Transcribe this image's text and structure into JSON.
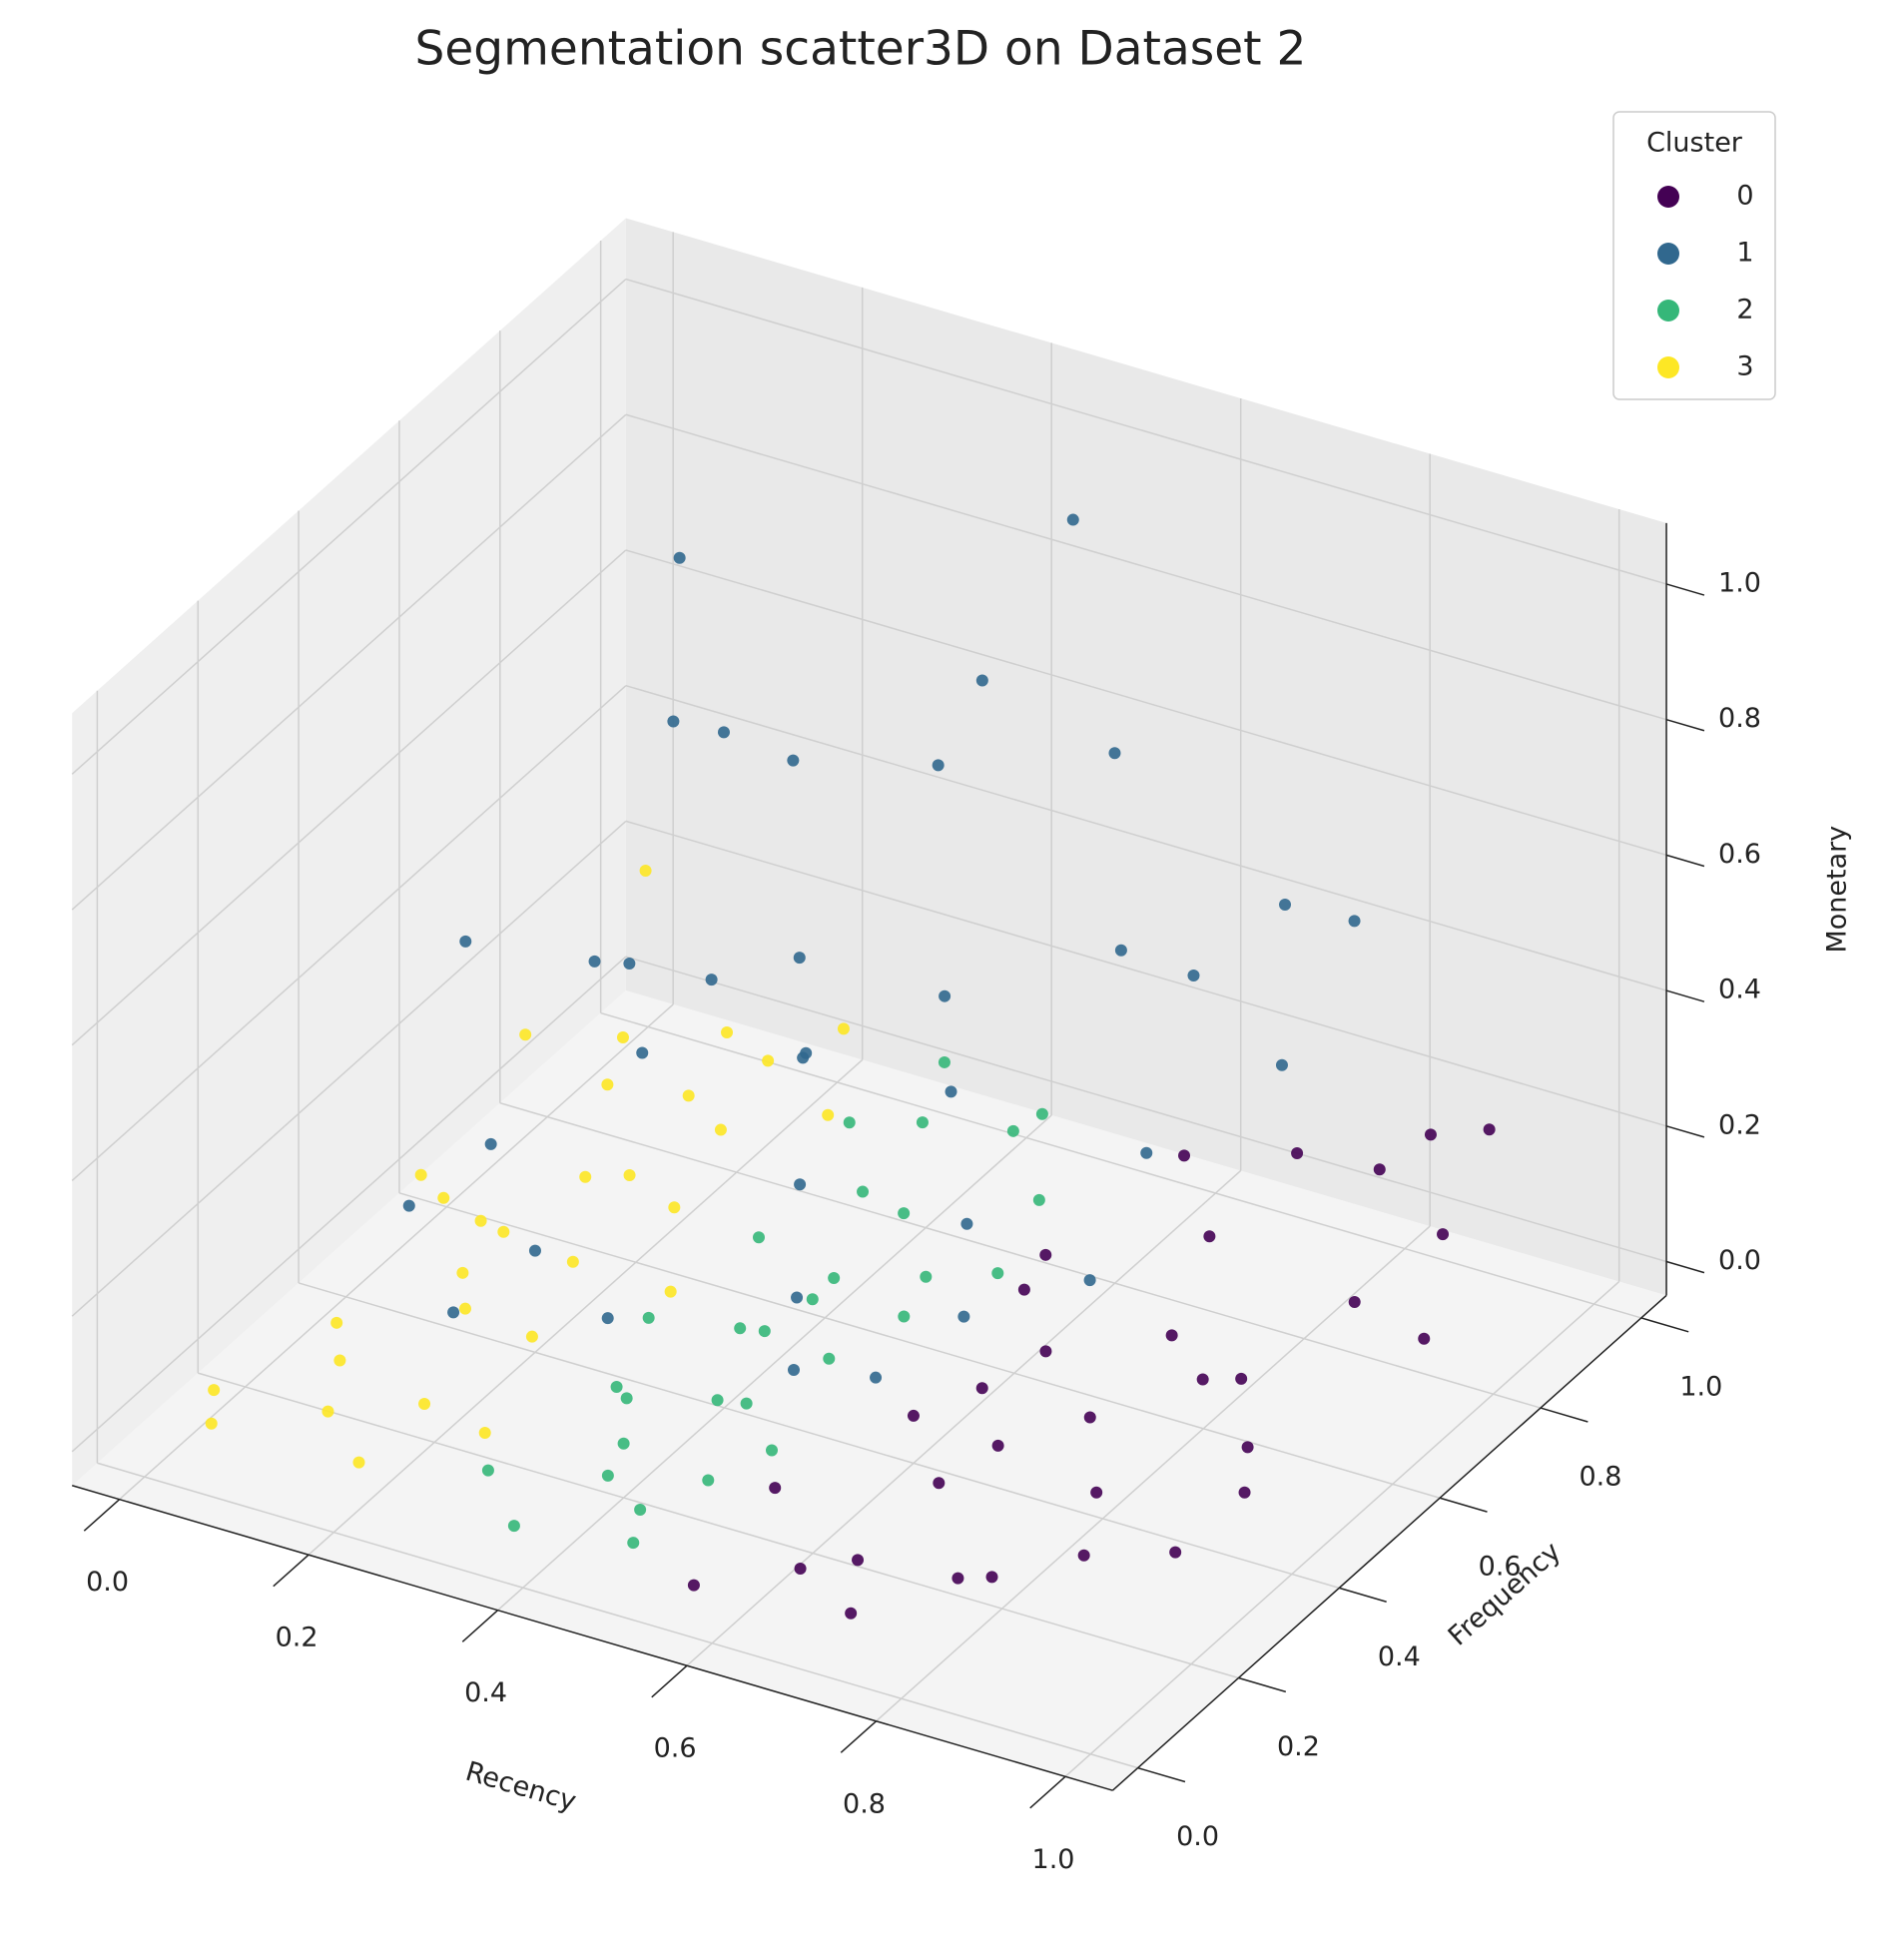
{
  "chart_data": {
    "type": "scatter3d",
    "title": "Segmentation scatter3D on Dataset 2",
    "x_label": "Recency",
    "y_label": "Frequency",
    "z_label": "Monetary",
    "legend_title": "Cluster",
    "legend": "upper right",
    "grid": true,
    "xlim": [
      -0.05,
      1.05
    ],
    "ylim": [
      -0.05,
      1.05
    ],
    "zlim": [
      -0.05,
      1.09
    ],
    "xticks": [
      {
        "value": 0,
        "label": "0.0"
      },
      0.2,
      0.4,
      0.6,
      0.8,
      {
        "value": 1,
        "label": "1.0"
      }
    ],
    "yticks": [
      {
        "value": 0,
        "label": "0.0"
      },
      0.2,
      0.4,
      0.6,
      0.8,
      {
        "value": 1,
        "label": "1.0"
      }
    ],
    "zticks": [
      {
        "value": 0,
        "label": "0.0"
      },
      0.2,
      0.4,
      0.6,
      0.8,
      {
        "value": 1,
        "label": "1.0"
      }
    ],
    "series": [
      {
        "name": "0",
        "color": "#440154",
        "x": [
          0.56,
          0.58,
          0.6,
          0.62,
          0.64,
          0.66,
          0.68,
          0.7,
          0.72,
          0.74,
          0.76,
          0.78,
          0.8,
          0.82,
          0.84,
          0.86,
          0.88,
          0.9,
          0.92,
          0.95,
          0.98,
          0.57,
          0.63,
          0.69,
          0.75,
          0.81,
          0.87,
          0.93,
          0.6,
          0.7,
          0.8,
          0.9
        ],
        "y": [
          0.2,
          0.7,
          0.4,
          0.9,
          0.1,
          0.55,
          0.3,
          0.8,
          0.05,
          0.65,
          0.45,
          0.15,
          0.95,
          0.35,
          0.6,
          0.25,
          0.75,
          0.5,
          0.85,
          0.4,
          0.7,
          0.02,
          0.48,
          0.12,
          0.88,
          0.58,
          0.92,
          0.3,
          0.62,
          0.38,
          0.18,
          0.98
        ],
        "z": [
          0.03,
          0.05,
          0.02,
          0.08,
          0.01,
          0.04,
          0.02,
          0.06,
          0.01,
          0.03,
          0.05,
          0.02,
          0.1,
          0.03,
          0.04,
          0.02,
          0.07,
          0.03,
          0.12,
          0.05,
          0.09,
          0.01,
          0.02,
          0.03,
          0.15,
          0.04,
          0.2,
          0.02,
          0.06,
          0.03,
          0.01,
          0.18
        ]
      },
      {
        "name": "1",
        "color": "#31688e",
        "x": [
          0.02,
          0.05,
          0.08,
          0.1,
          0.14,
          0.18,
          0.2,
          0.24,
          0.28,
          0.3,
          0.33,
          0.36,
          0.4,
          0.42,
          0.45,
          0.48,
          0.5,
          0.52,
          0.55,
          0.58,
          0.6,
          0.63,
          0.66,
          0.7,
          0.75,
          0.8,
          0.12,
          0.22,
          0.35,
          0.46,
          0.56,
          0.68,
          0.38,
          0.26,
          0.16,
          0.06
        ],
        "y": [
          0.6,
          0.8,
          0.9,
          0.5,
          0.7,
          0.95,
          0.4,
          0.85,
          0.6,
          0.75,
          0.3,
          0.9,
          0.55,
          0.8,
          0.45,
          0.7,
          0.35,
          0.95,
          0.6,
          0.85,
          0.5,
          0.9,
          0.75,
          0.95,
          0.85,
          0.9,
          0.3,
          0.2,
          0.65,
          0.98,
          0.4,
          0.6,
          0.95,
          0.5,
          0.85,
          0.95
        ],
        "z": [
          0.35,
          0.2,
          0.5,
          0.15,
          0.3,
          0.45,
          0.1,
          0.25,
          0.4,
          0.2,
          0.12,
          0.55,
          0.18,
          0.3,
          0.1,
          0.25,
          0.08,
          0.6,
          0.15,
          0.4,
          0.1,
          0.35,
          0.2,
          0.45,
          0.3,
          0.5,
          0.2,
          0.15,
          0.28,
          0.9,
          0.06,
          0.12,
          0.65,
          0.35,
          0.55,
          0.7
        ]
      },
      {
        "name": "2",
        "color": "#35b779",
        "x": [
          0.31,
          0.33,
          0.35,
          0.37,
          0.39,
          0.41,
          0.43,
          0.45,
          0.47,
          0.49,
          0.51,
          0.53,
          0.32,
          0.36,
          0.4,
          0.44,
          0.48,
          0.52,
          0.34,
          0.38,
          0.42,
          0.46,
          0.5,
          0.54,
          0.35,
          0.45,
          0.4,
          0.5,
          0.33,
          0.43
        ],
        "y": [
          0.1,
          0.6,
          0.3,
          0.85,
          0.45,
          0.15,
          0.7,
          0.35,
          0.9,
          0.05,
          0.55,
          0.25,
          0.4,
          0.75,
          0.2,
          0.5,
          0.65,
          0.8,
          0.95,
          0.02,
          0.58,
          0.12,
          0.42,
          0.68,
          0.28,
          0.88,
          0.48,
          0.18,
          0.78,
          0.33
        ],
        "z": [
          0.02,
          0.04,
          0.01,
          0.06,
          0.03,
          0.02,
          0.05,
          0.01,
          0.08,
          0.02,
          0.03,
          0.04,
          0.05,
          0.02,
          0.03,
          0.06,
          0.01,
          0.04,
          0.07,
          0.02,
          0.03,
          0.01,
          0.05,
          0.02,
          0.04,
          0.06,
          0.01,
          0.03,
          0.09,
          0.02
        ]
      },
      {
        "name": "3",
        "color": "#fde725",
        "x": [
          0.02,
          0.05,
          0.08,
          0.1,
          0.12,
          0.15,
          0.18,
          0.2,
          0.22,
          0.25,
          0.28,
          0.03,
          0.07,
          0.11,
          0.14,
          0.17,
          0.21,
          0.24,
          0.27,
          0.29,
          0.06,
          0.09,
          0.13,
          0.16,
          0.19,
          0.23,
          0.26,
          0.04,
          0.1,
          0.2
        ],
        "y": [
          0.1,
          0.5,
          0.8,
          0.2,
          0.65,
          0.35,
          0.9,
          0.05,
          0.55,
          0.3,
          0.15,
          0.7,
          0.25,
          0.95,
          0.45,
          0.6,
          0.75,
          0.4,
          0.85,
          0.5,
          0.02,
          0.38,
          0.12,
          0.78,
          0.28,
          0.62,
          0.9,
          0.92,
          0.48,
          0.18
        ],
        "z": [
          0.02,
          0.05,
          0.1,
          0.03,
          0.01,
          0.08,
          0.04,
          0.02,
          0.12,
          0.06,
          0.03,
          0.15,
          0.04,
          0.02,
          0.07,
          0.2,
          0.05,
          0.1,
          0.03,
          0.01,
          0.04,
          0.18,
          0.02,
          0.06,
          0.09,
          0.03,
          0.12,
          0.25,
          0.05,
          0.02
        ]
      }
    ]
  }
}
